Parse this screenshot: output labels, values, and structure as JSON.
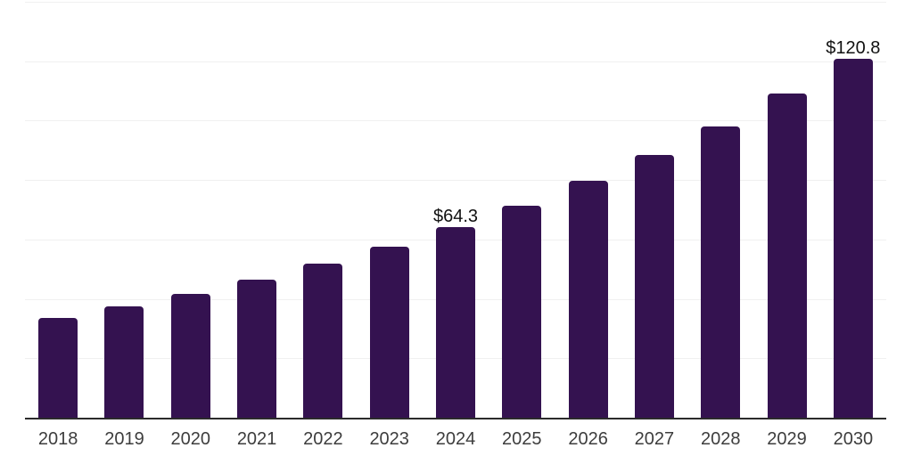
{
  "page": {
    "background_color": "#ffffff"
  },
  "chart_data": {
    "type": "bar",
    "categories": [
      "2018",
      "2019",
      "2020",
      "2021",
      "2022",
      "2023",
      "2024",
      "2025",
      "2026",
      "2027",
      "2028",
      "2029",
      "2030"
    ],
    "values": [
      33.6,
      37.5,
      41.7,
      46.5,
      51.9,
      57.7,
      64.3,
      71.3,
      79.7,
      88.4,
      98.0,
      109.1,
      120.8
    ],
    "value_labels": [
      {
        "category": "2024",
        "text": "$64.3"
      },
      {
        "category": "2030",
        "text": "$120.8"
      }
    ],
    "ylim": [
      0,
      140
    ],
    "y_grid_step": 20,
    "y_axis_tick_labels_visible": false,
    "grid": true,
    "legend": "none",
    "colors": {
      "bar": "#341250",
      "axis_line": "#2b2b2b",
      "gridline": "#f0f0f0",
      "tick_label": "#3d3d3d",
      "value_label": "#111111"
    }
  }
}
